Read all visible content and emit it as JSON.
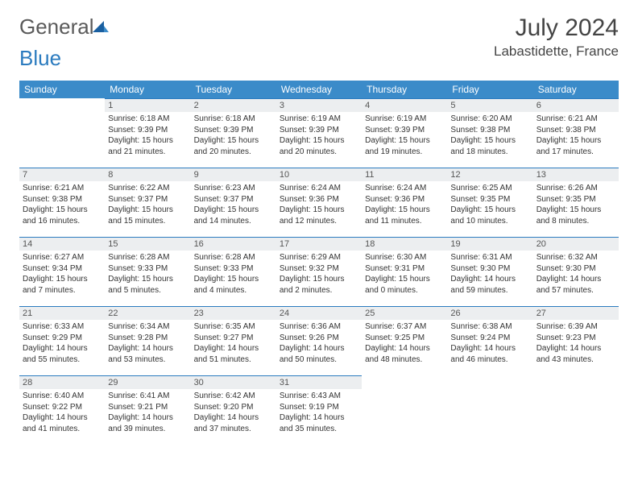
{
  "brand": {
    "part1": "General",
    "part2": "Blue"
  },
  "title": "July 2024",
  "location": "Labastidette, France",
  "colors": {
    "header_bg": "#3b8bc9",
    "header_text": "#ffffff",
    "daynum_bg": "#eceef0",
    "daynum_border": "#2b7bbf",
    "text": "#333333"
  },
  "weekdays": [
    "Sunday",
    "Monday",
    "Tuesday",
    "Wednesday",
    "Thursday",
    "Friday",
    "Saturday"
  ],
  "weeks": [
    [
      null,
      {
        "n": "1",
        "sr": "Sunrise: 6:18 AM",
        "ss": "Sunset: 9:39 PM",
        "dl": "Daylight: 15 hours and 21 minutes."
      },
      {
        "n": "2",
        "sr": "Sunrise: 6:18 AM",
        "ss": "Sunset: 9:39 PM",
        "dl": "Daylight: 15 hours and 20 minutes."
      },
      {
        "n": "3",
        "sr": "Sunrise: 6:19 AM",
        "ss": "Sunset: 9:39 PM",
        "dl": "Daylight: 15 hours and 20 minutes."
      },
      {
        "n": "4",
        "sr": "Sunrise: 6:19 AM",
        "ss": "Sunset: 9:39 PM",
        "dl": "Daylight: 15 hours and 19 minutes."
      },
      {
        "n": "5",
        "sr": "Sunrise: 6:20 AM",
        "ss": "Sunset: 9:38 PM",
        "dl": "Daylight: 15 hours and 18 minutes."
      },
      {
        "n": "6",
        "sr": "Sunrise: 6:21 AM",
        "ss": "Sunset: 9:38 PM",
        "dl": "Daylight: 15 hours and 17 minutes."
      }
    ],
    [
      {
        "n": "7",
        "sr": "Sunrise: 6:21 AM",
        "ss": "Sunset: 9:38 PM",
        "dl": "Daylight: 15 hours and 16 minutes."
      },
      {
        "n": "8",
        "sr": "Sunrise: 6:22 AM",
        "ss": "Sunset: 9:37 PM",
        "dl": "Daylight: 15 hours and 15 minutes."
      },
      {
        "n": "9",
        "sr": "Sunrise: 6:23 AM",
        "ss": "Sunset: 9:37 PM",
        "dl": "Daylight: 15 hours and 14 minutes."
      },
      {
        "n": "10",
        "sr": "Sunrise: 6:24 AM",
        "ss": "Sunset: 9:36 PM",
        "dl": "Daylight: 15 hours and 12 minutes."
      },
      {
        "n": "11",
        "sr": "Sunrise: 6:24 AM",
        "ss": "Sunset: 9:36 PM",
        "dl": "Daylight: 15 hours and 11 minutes."
      },
      {
        "n": "12",
        "sr": "Sunrise: 6:25 AM",
        "ss": "Sunset: 9:35 PM",
        "dl": "Daylight: 15 hours and 10 minutes."
      },
      {
        "n": "13",
        "sr": "Sunrise: 6:26 AM",
        "ss": "Sunset: 9:35 PM",
        "dl": "Daylight: 15 hours and 8 minutes."
      }
    ],
    [
      {
        "n": "14",
        "sr": "Sunrise: 6:27 AM",
        "ss": "Sunset: 9:34 PM",
        "dl": "Daylight: 15 hours and 7 minutes."
      },
      {
        "n": "15",
        "sr": "Sunrise: 6:28 AM",
        "ss": "Sunset: 9:33 PM",
        "dl": "Daylight: 15 hours and 5 minutes."
      },
      {
        "n": "16",
        "sr": "Sunrise: 6:28 AM",
        "ss": "Sunset: 9:33 PM",
        "dl": "Daylight: 15 hours and 4 minutes."
      },
      {
        "n": "17",
        "sr": "Sunrise: 6:29 AM",
        "ss": "Sunset: 9:32 PM",
        "dl": "Daylight: 15 hours and 2 minutes."
      },
      {
        "n": "18",
        "sr": "Sunrise: 6:30 AM",
        "ss": "Sunset: 9:31 PM",
        "dl": "Daylight: 15 hours and 0 minutes."
      },
      {
        "n": "19",
        "sr": "Sunrise: 6:31 AM",
        "ss": "Sunset: 9:30 PM",
        "dl": "Daylight: 14 hours and 59 minutes."
      },
      {
        "n": "20",
        "sr": "Sunrise: 6:32 AM",
        "ss": "Sunset: 9:30 PM",
        "dl": "Daylight: 14 hours and 57 minutes."
      }
    ],
    [
      {
        "n": "21",
        "sr": "Sunrise: 6:33 AM",
        "ss": "Sunset: 9:29 PM",
        "dl": "Daylight: 14 hours and 55 minutes."
      },
      {
        "n": "22",
        "sr": "Sunrise: 6:34 AM",
        "ss": "Sunset: 9:28 PM",
        "dl": "Daylight: 14 hours and 53 minutes."
      },
      {
        "n": "23",
        "sr": "Sunrise: 6:35 AM",
        "ss": "Sunset: 9:27 PM",
        "dl": "Daylight: 14 hours and 51 minutes."
      },
      {
        "n": "24",
        "sr": "Sunrise: 6:36 AM",
        "ss": "Sunset: 9:26 PM",
        "dl": "Daylight: 14 hours and 50 minutes."
      },
      {
        "n": "25",
        "sr": "Sunrise: 6:37 AM",
        "ss": "Sunset: 9:25 PM",
        "dl": "Daylight: 14 hours and 48 minutes."
      },
      {
        "n": "26",
        "sr": "Sunrise: 6:38 AM",
        "ss": "Sunset: 9:24 PM",
        "dl": "Daylight: 14 hours and 46 minutes."
      },
      {
        "n": "27",
        "sr": "Sunrise: 6:39 AM",
        "ss": "Sunset: 9:23 PM",
        "dl": "Daylight: 14 hours and 43 minutes."
      }
    ],
    [
      {
        "n": "28",
        "sr": "Sunrise: 6:40 AM",
        "ss": "Sunset: 9:22 PM",
        "dl": "Daylight: 14 hours and 41 minutes."
      },
      {
        "n": "29",
        "sr": "Sunrise: 6:41 AM",
        "ss": "Sunset: 9:21 PM",
        "dl": "Daylight: 14 hours and 39 minutes."
      },
      {
        "n": "30",
        "sr": "Sunrise: 6:42 AM",
        "ss": "Sunset: 9:20 PM",
        "dl": "Daylight: 14 hours and 37 minutes."
      },
      {
        "n": "31",
        "sr": "Sunrise: 6:43 AM",
        "ss": "Sunset: 9:19 PM",
        "dl": "Daylight: 14 hours and 35 minutes."
      },
      null,
      null,
      null
    ]
  ]
}
